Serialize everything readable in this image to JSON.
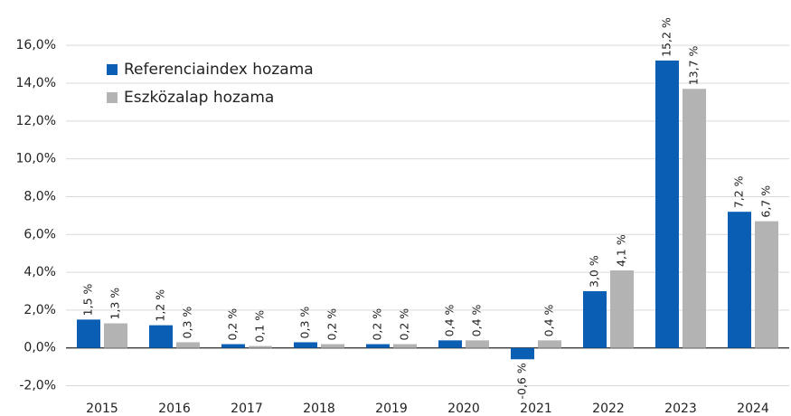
{
  "chart_data": {
    "type": "bar",
    "categories": [
      "2015",
      "2016",
      "2017",
      "2018",
      "2019",
      "2020",
      "2021",
      "2022",
      "2023",
      "2024"
    ],
    "series": [
      {
        "name": "Referenciaindex hozama",
        "color": "#0a5fb4",
        "values": [
          1.5,
          1.2,
          0.2,
          0.3,
          0.2,
          0.4,
          -0.6,
          3.0,
          15.2,
          7.2
        ],
        "value_labels": [
          "1,5 %",
          "1,2 %",
          "0,2 %",
          "0,3 %",
          "0,2 %",
          "0,4 %",
          "-0,6 %",
          "3,0 %",
          "15,2 %",
          "7,2 %"
        ]
      },
      {
        "name": "Eszközalap hozama",
        "color": "#b3b3b3",
        "values": [
          1.3,
          0.3,
          0.1,
          0.2,
          0.2,
          0.4,
          0.4,
          4.1,
          13.7,
          6.7
        ],
        "value_labels": [
          "1,3 %",
          "0,3 %",
          "0,1 %",
          "0,2 %",
          "0,2 %",
          "0,4 %",
          "0,4 %",
          "4,1 %",
          "13,7 %",
          "6,7 %"
        ]
      }
    ],
    "ylim": [
      -2.5,
      18.4
    ],
    "yticks": [
      {
        "value": -2,
        "label": "-2,0%"
      },
      {
        "value": 0,
        "label": "0,0%"
      },
      {
        "value": 2,
        "label": "2,0%"
      },
      {
        "value": 4,
        "label": "4,0%"
      },
      {
        "value": 6,
        "label": "6,0%"
      },
      {
        "value": 8,
        "label": "8,0%"
      },
      {
        "value": 10,
        "label": "10,0%"
      },
      {
        "value": 12,
        "label": "12,0%"
      },
      {
        "value": 14,
        "label": "14,0%"
      },
      {
        "value": 16,
        "label": "16,0%"
      }
    ],
    "grid": true,
    "legend": "upper left"
  }
}
